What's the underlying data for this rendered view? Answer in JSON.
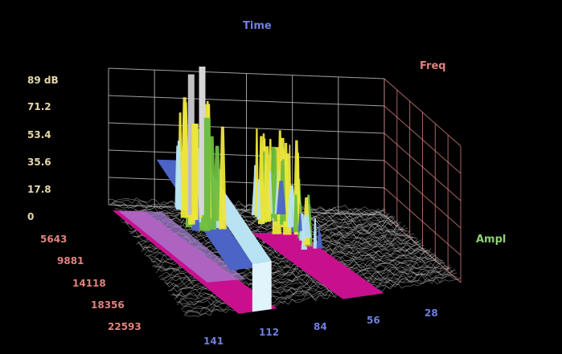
{
  "chart_data": {
    "type": "waterfall-3d",
    "axes": {
      "time": {
        "title": "Time",
        "ticks": [
          "141",
          "112",
          "84",
          "56",
          "28"
        ]
      },
      "freq": {
        "title": "Freq",
        "ticks": [
          "5643",
          "9881",
          "14118",
          "18356",
          "22593"
        ]
      },
      "ampl": {
        "title": "Ampl",
        "ticks": [
          "89 dB",
          "71.2",
          "53.4",
          "35.6",
          "17.8",
          "0"
        ]
      }
    },
    "grid": true,
    "colors": {
      "background": "#000000",
      "noise": "#c9c9c9",
      "low": "#c8108f",
      "mid_low": "#a77fd0",
      "mid": "#4c64c6",
      "mid_high": "#b7e3f2",
      "high": "#6fbe3f",
      "peak": "#ece63b",
      "time_label": "#6f7fe0",
      "freq_label": "#e0827e",
      "ampl_label": "#8fd07a",
      "ampl_tick": "#e6d7a8"
    }
  }
}
